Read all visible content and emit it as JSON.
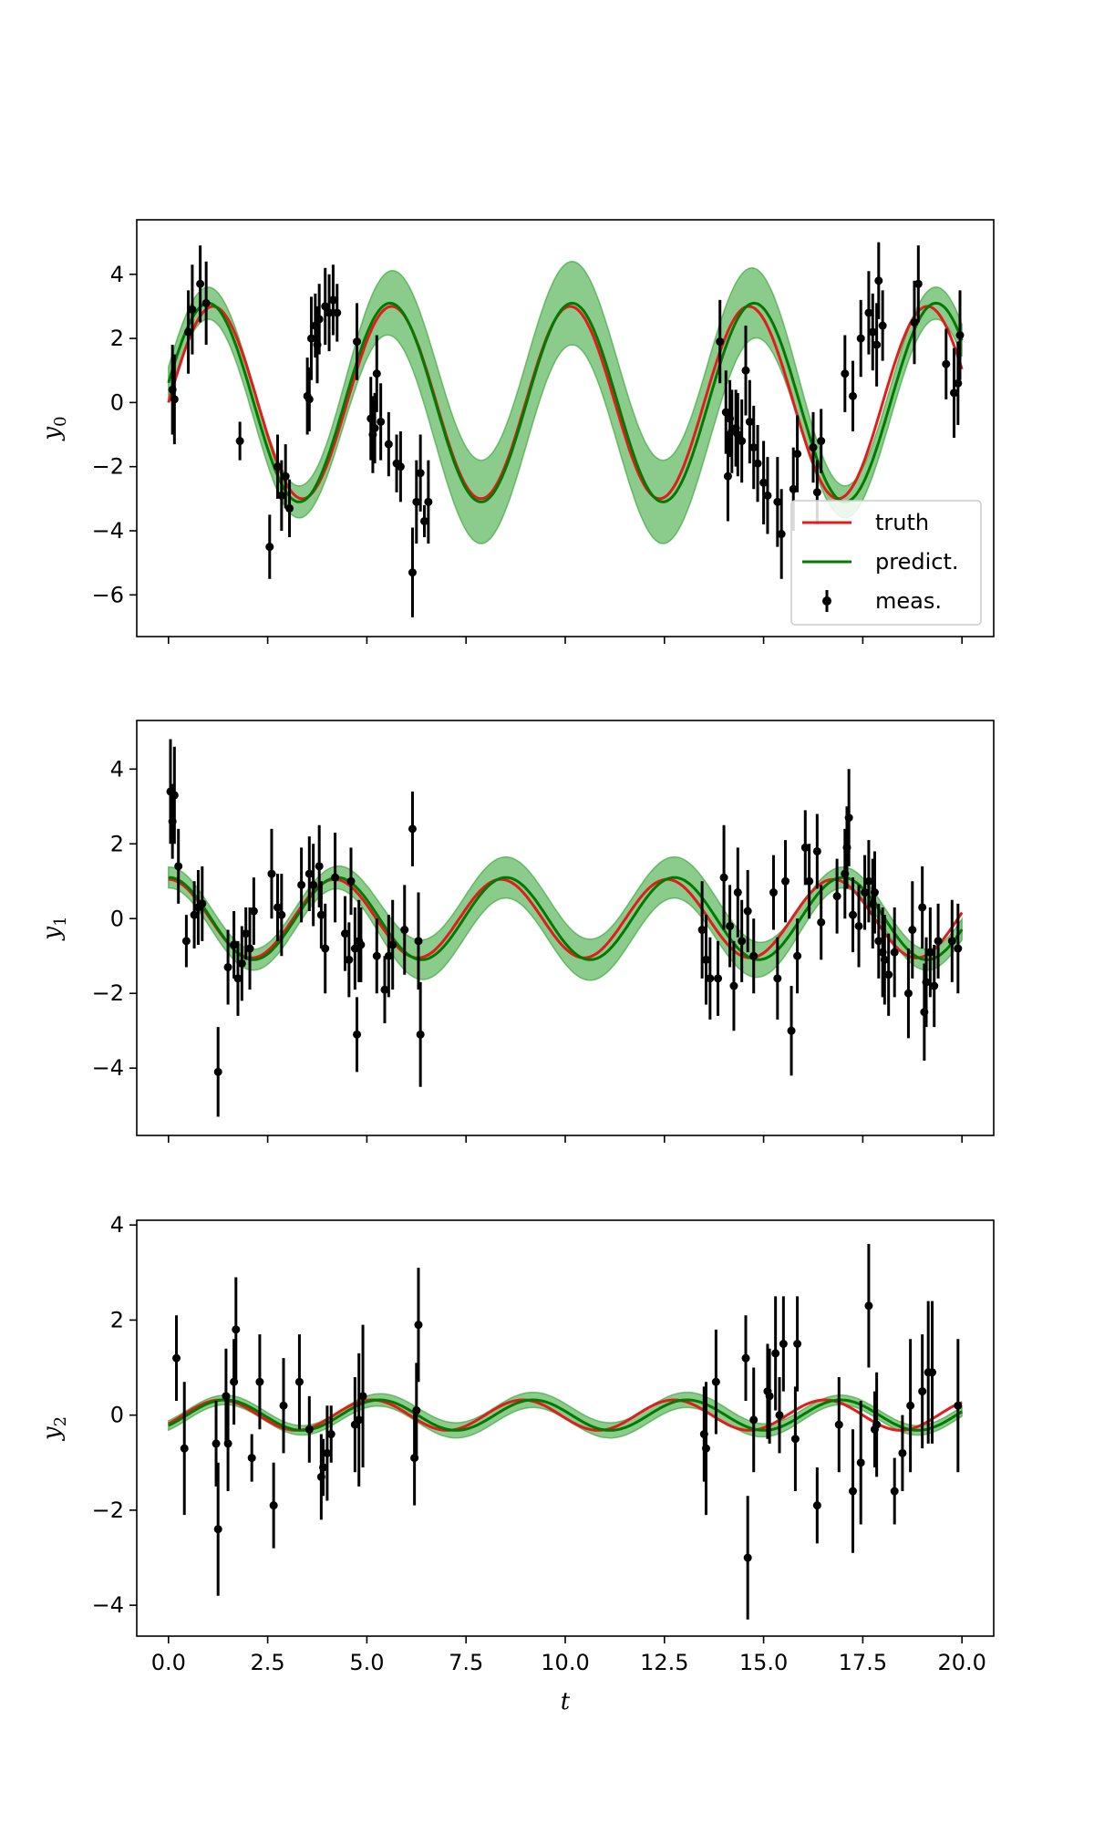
{
  "colors": {
    "truth": "#e41a1c",
    "predict": "#007a00",
    "band": "#2ca02c",
    "meas": "#000000"
  },
  "chart_data": [
    {
      "type": "line",
      "ylabel": "y_0",
      "xlabel": "",
      "xlim": [
        -0.8,
        20.8
      ],
      "ylim": [
        -7.3,
        5.7
      ],
      "yticks": [
        4,
        2,
        0,
        -2,
        -4,
        -6
      ],
      "xticks": [
        0,
        2.5,
        5,
        7.5,
        10,
        12.5,
        15,
        17.5,
        20
      ],
      "xtick_labels_visible": false,
      "legend": {
        "position": "lower-right",
        "entries": [
          "truth",
          "predict.",
          "meas."
        ]
      },
      "truth": {
        "name": "truth",
        "amplitude": 3.0,
        "omega": 1.396,
        "phase": 0.0,
        "offset": 0.0
      },
      "predict": {
        "name": "predict.",
        "amplitude": 3.1,
        "omega": 1.37,
        "phase": 0.2,
        "offset": 0.0
      },
      "band_halfwidth": {
        "observed": 0.5,
        "gap": 1.3
      },
      "meas": {
        "name": "meas.",
        "x": [
          0.1,
          0.15,
          0.5,
          0.6,
          0.8,
          0.95,
          1.8,
          2.55,
          2.75,
          2.85,
          2.95,
          3.05,
          3.5,
          3.55,
          3.6,
          3.7,
          3.75,
          3.8,
          3.95,
          4.05,
          4.15,
          4.25,
          4.75,
          5.1,
          5.15,
          5.2,
          5.25,
          5.35,
          5.55,
          5.75,
          5.85,
          6.15,
          6.25,
          6.35,
          6.45,
          6.55,
          13.9,
          14.05,
          14.1,
          14.15,
          14.2,
          14.3,
          14.35,
          14.45,
          14.55,
          14.65,
          14.75,
          14.85,
          15.0,
          15.1,
          15.35,
          15.45,
          15.75,
          15.85,
          16.25,
          16.35,
          16.45,
          17.05,
          17.25,
          17.45,
          17.65,
          17.75,
          17.85,
          17.9,
          18.0,
          18.8,
          18.9,
          19.6,
          19.8,
          19.9,
          19.95
        ],
        "y": [
          0.4,
          0.1,
          2.2,
          2.9,
          3.7,
          3.1,
          -1.2,
          -4.5,
          -2.0,
          -2.9,
          -2.3,
          -3.3,
          0.2,
          0.1,
          2.0,
          2.4,
          1.8,
          2.6,
          3.0,
          2.8,
          3.2,
          2.8,
          1.9,
          -0.5,
          -1.0,
          -0.8,
          0.9,
          -0.6,
          -1.3,
          -1.9,
          -2.0,
          -5.3,
          -3.1,
          -2.2,
          -3.7,
          -3.1,
          1.9,
          -0.3,
          -2.3,
          -0.5,
          -0.9,
          -0.8,
          -1.0,
          -1.2,
          1.0,
          -0.6,
          -1.4,
          -1.9,
          -2.5,
          -2.9,
          -3.1,
          -4.1,
          -2.7,
          -1.6,
          -1.4,
          -2.8,
          -1.2,
          0.9,
          0.2,
          2.0,
          2.8,
          2.2,
          1.8,
          3.8,
          2.4,
          2.5,
          3.7,
          1.2,
          0.3,
          0.6,
          2.1
        ],
        "err": [
          1.4,
          1.4,
          1.3,
          1.4,
          1.2,
          1.3,
          0.6,
          1.0,
          1.0,
          1.1,
          1.0,
          0.9,
          1.2,
          1.0,
          1.3,
          1.0,
          1.2,
          1.1,
          1.2,
          1.2,
          1.1,
          0.9,
          1.2,
          1.3,
          1.2,
          1.1,
          1.2,
          1.2,
          1.0,
          0.9,
          1.1,
          1.4,
          1.3,
          1.2,
          0.5,
          1.3,
          1.3,
          1.3,
          1.4,
          1.2,
          1.3,
          1.2,
          1.3,
          1.3,
          1.4,
          1.3,
          1.3,
          1.2,
          1.3,
          1.2,
          1.4,
          1.4,
          1.3,
          1.2,
          1.1,
          1.0,
          1.0,
          1.2,
          1.1,
          1.2,
          1.3,
          1.2,
          1.3,
          1.2,
          1.1,
          1.3,
          1.2,
          1.1,
          1.4,
          1.3,
          1.4
        ]
      }
    },
    {
      "type": "line",
      "ylabel": "y_1",
      "xlabel": "",
      "xlim": [
        -0.8,
        20.8
      ],
      "ylim": [
        -5.8,
        5.3
      ],
      "yticks": [
        4,
        2,
        0,
        -2,
        -4
      ],
      "xticks": [
        0,
        2.5,
        5,
        7.5,
        10,
        12.5,
        15,
        17.5,
        20
      ],
      "xtick_labels_visible": false,
      "truth": {
        "name": "truth",
        "amplitude": 1.05,
        "omega": 1.5,
        "phase": 1.57,
        "offset": 0.0
      },
      "predict": {
        "name": "predict.",
        "amplitude": 1.1,
        "omega": 1.48,
        "phase": 1.55,
        "offset": 0.0
      },
      "band_halfwidth": {
        "observed": 0.28,
        "gap": 0.55
      },
      "meas": {
        "name": "meas.",
        "x": [
          0.05,
          0.1,
          0.15,
          0.25,
          0.45,
          0.65,
          0.75,
          0.85,
          1.25,
          1.5,
          1.65,
          1.75,
          1.85,
          1.95,
          2.05,
          2.15,
          2.6,
          2.75,
          2.85,
          3.35,
          3.55,
          3.65,
          3.8,
          3.85,
          3.95,
          4.2,
          4.45,
          4.55,
          4.6,
          4.7,
          4.75,
          4.8,
          4.85,
          5.25,
          5.45,
          5.55,
          5.65,
          5.95,
          6.15,
          6.3,
          6.35,
          13.45,
          13.55,
          13.65,
          13.85,
          14.0,
          14.15,
          14.25,
          14.35,
          14.45,
          14.6,
          14.75,
          15.25,
          15.35,
          15.55,
          15.7,
          15.85,
          16.05,
          16.15,
          16.35,
          16.45,
          16.85,
          17.05,
          17.1,
          17.15,
          17.25,
          17.4,
          17.55,
          17.65,
          17.75,
          17.8,
          17.9,
          18.0,
          18.05,
          18.15,
          18.3,
          18.65,
          18.75,
          19.0,
          19.05,
          19.1,
          19.2,
          19.3,
          19.4,
          19.75,
          19.9
        ],
        "y": [
          3.4,
          2.6,
          3.3,
          1.4,
          -0.6,
          0.1,
          0.3,
          0.4,
          -4.1,
          -1.3,
          -0.7,
          -1.6,
          -1.2,
          -0.4,
          -0.8,
          0.2,
          1.2,
          0.3,
          0.1,
          0.9,
          1.2,
          0.9,
          1.4,
          0.1,
          -0.8,
          1.1,
          -0.4,
          -1.1,
          1.0,
          -0.8,
          -3.1,
          -0.6,
          -0.7,
          -1.0,
          -1.9,
          -1.0,
          -0.7,
          -0.3,
          2.4,
          -0.6,
          -3.1,
          -0.3,
          -1.1,
          -1.6,
          -1.6,
          1.1,
          -0.2,
          -1.8,
          0.7,
          -0.6,
          0.2,
          -1.0,
          0.7,
          -1.6,
          1.0,
          -3.0,
          -1.0,
          1.9,
          1.0,
          1.8,
          -0.1,
          0.6,
          1.2,
          1.9,
          2.7,
          0.1,
          -0.2,
          0.7,
          1.0,
          0.4,
          0.7,
          -0.6,
          -0.9,
          -1.1,
          -1.5,
          -0.9,
          -2.0,
          -0.3,
          0.3,
          -2.5,
          -1.7,
          -0.9,
          -1.8,
          -0.6,
          -0.6,
          -0.8
        ],
        "err": [
          1.4,
          1.0,
          1.3,
          1.0,
          0.7,
          0.9,
          1.0,
          1.0,
          1.2,
          1.0,
          0.9,
          1.0,
          1.0,
          0.7,
          1.1,
          0.9,
          1.2,
          0.9,
          1.1,
          1.0,
          1.0,
          1.1,
          1.1,
          0.9,
          1.2,
          1.2,
          1.0,
          1.0,
          0.9,
          1.1,
          1.0,
          1.1,
          1.0,
          1.0,
          0.9,
          1.1,
          1.2,
          1.2,
          1.0,
          1.3,
          1.4,
          1.3,
          1.2,
          1.1,
          1.0,
          1.4,
          1.1,
          1.2,
          1.2,
          1.1,
          1.1,
          1.0,
          1.0,
          1.1,
          1.1,
          1.2,
          1.0,
          1.0,
          1.0,
          1.0,
          1.0,
          1.0,
          1.2,
          1.1,
          1.3,
          1.0,
          1.1,
          1.0,
          1.1,
          1.2,
          1.1,
          1.0,
          1.2,
          1.2,
          1.1,
          1.2,
          1.2,
          1.3,
          1.1,
          1.3,
          1.2,
          1.2,
          1.1,
          1.0,
          1.1,
          1.2
        ]
      }
    },
    {
      "type": "line",
      "ylabel": "y_2",
      "xlabel": "t",
      "xlim": [
        -0.8,
        20.8
      ],
      "ylim": [
        -4.65,
        4.1
      ],
      "yticks": [
        4,
        2,
        0,
        -2,
        -4
      ],
      "xticks": [
        0,
        2.5,
        5,
        7.5,
        10,
        12.5,
        15,
        17.5,
        20
      ],
      "xtick_labels": [
        "0.0",
        "2.5",
        "5.0",
        "7.5",
        "10.0",
        "12.5",
        "15.0",
        "17.5",
        "20.0"
      ],
      "xtick_labels_visible": true,
      "truth": {
        "name": "truth",
        "amplitude": 0.32,
        "omega": 1.65,
        "phase": -0.6,
        "offset": 0.0
      },
      "predict": {
        "name": "predict.",
        "amplitude": 0.32,
        "omega": 1.62,
        "phase": -0.75,
        "offset": 0.0
      },
      "band_halfwidth": {
        "observed": 0.1,
        "gap": 0.16
      },
      "meas": {
        "name": "meas.",
        "x": [
          0.2,
          0.4,
          1.2,
          1.25,
          1.45,
          1.5,
          1.65,
          1.7,
          2.1,
          2.3,
          2.65,
          2.9,
          3.3,
          3.55,
          3.85,
          3.9,
          4.0,
          4.1,
          4.7,
          4.8,
          4.9,
          6.2,
          6.25,
          6.3,
          13.5,
          13.55,
          13.8,
          14.55,
          14.6,
          14.75,
          15.1,
          15.15,
          15.3,
          15.4,
          15.5,
          15.8,
          15.85,
          16.35,
          16.9,
          17.25,
          17.45,
          17.65,
          17.8,
          17.85,
          18.3,
          18.5,
          18.7,
          19.0,
          19.15,
          19.25,
          19.9
        ],
        "y": [
          1.2,
          -0.7,
          -0.6,
          -2.4,
          0.4,
          -0.6,
          0.7,
          1.8,
          -0.9,
          0.7,
          -1.9,
          0.2,
          0.7,
          -0.3,
          -1.3,
          -1.1,
          -0.8,
          -0.4,
          -0.2,
          -0.1,
          0.4,
          -0.9,
          0.1,
          1.9,
          -0.4,
          -0.7,
          0.7,
          1.2,
          -3.0,
          -0.1,
          0.5,
          0.4,
          1.3,
          0.0,
          1.5,
          -0.5,
          1.5,
          -1.9,
          -0.2,
          -1.6,
          -1.0,
          2.3,
          -0.3,
          -0.2,
          -1.6,
          -0.8,
          0.2,
          0.5,
          0.9,
          0.9,
          0.2
        ],
        "err": [
          0.9,
          1.4,
          0.9,
          1.4,
          1.0,
          1.0,
          0.9,
          1.1,
          0.5,
          1.0,
          0.9,
          1.0,
          1.0,
          0.7,
          0.9,
          0.6,
          1.0,
          0.6,
          1.0,
          1.4,
          1.5,
          1.0,
          1.0,
          1.2,
          1.0,
          1.4,
          1.1,
          0.9,
          1.3,
          1.1,
          1.0,
          1.0,
          1.2,
          0.8,
          1.0,
          1.1,
          1.0,
          0.8,
          1.0,
          1.3,
          1.3,
          1.3,
          0.8,
          1.1,
          0.7,
          0.8,
          1.4,
          1.2,
          1.5,
          1.5,
          1.4
        ]
      }
    }
  ]
}
